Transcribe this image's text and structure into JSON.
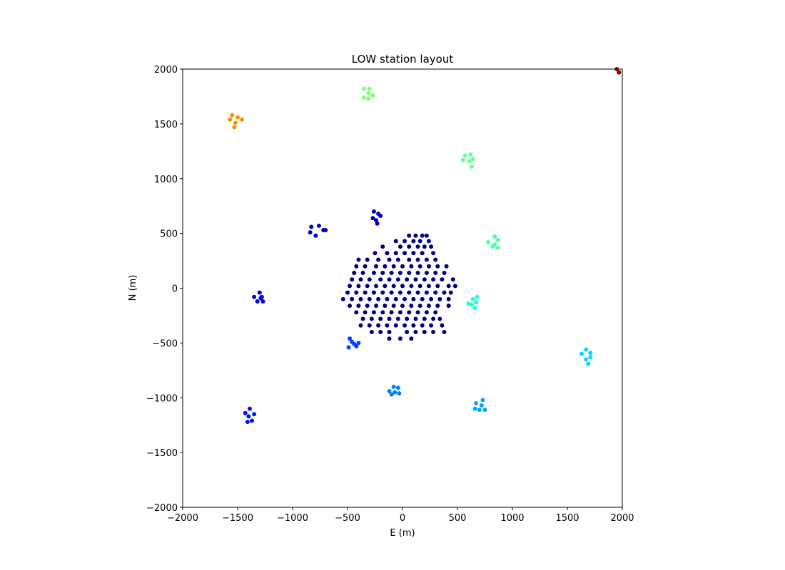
{
  "chart_data": {
    "type": "scatter",
    "title": "LOW station layout",
    "x_label": "E (m)",
    "y_label": "N (m)",
    "xlim": [
      -2000,
      2000
    ],
    "ylim": [
      -2000,
      2000
    ],
    "xticks": [
      {
        "value": -2000,
        "label": "−2000"
      },
      {
        "value": -1500,
        "label": "−1500"
      },
      {
        "value": -1000,
        "label": "−1000"
      },
      {
        "value": -500,
        "label": "−500"
      },
      0,
      500,
      1000,
      1500,
      2000
    ],
    "yticks": [
      {
        "value": -2000,
        "label": "−2000"
      },
      {
        "value": -1500,
        "label": "−1500"
      },
      {
        "value": -1000,
        "label": "−1000"
      },
      {
        "value": -500,
        "label": "−500"
      },
      0,
      500,
      1000,
      1500,
      2000
    ],
    "series": [
      {
        "color": "#00007f",
        "x": [
          60,
          120,
          180,
          220,
          -60,
          20,
          100,
          160,
          240,
          -180,
          -20,
          60,
          140,
          200,
          260,
          -250,
          -140,
          -60,
          20,
          100,
          180,
          280,
          -400,
          -320,
          -220,
          -120,
          -40,
          60,
          140,
          220,
          300,
          -420,
          -340,
          -240,
          -160,
          -80,
          0,
          80,
          160,
          240,
          320,
          400,
          -440,
          -360,
          -260,
          -180,
          -100,
          -20,
          60,
          140,
          220,
          300,
          380,
          -460,
          -380,
          -300,
          -200,
          -120,
          -40,
          40,
          120,
          200,
          280,
          360,
          460,
          -480,
          -400,
          -320,
          -240,
          -160,
          -80,
          0,
          80,
          160,
          240,
          320,
          420,
          480,
          -500,
          -420,
          -340,
          -260,
          -180,
          -100,
          -20,
          60,
          140,
          220,
          300,
          380,
          440,
          -540,
          -460,
          -380,
          -300,
          -220,
          -140,
          -60,
          20,
          100,
          180,
          260,
          340,
          420,
          -480,
          -400,
          -320,
          -240,
          -160,
          -80,
          0,
          80,
          160,
          240,
          320,
          420,
          -420,
          -340,
          -260,
          -180,
          -100,
          -20,
          60,
          140,
          220,
          300,
          -360,
          -280,
          -200,
          -120,
          -40,
          40,
          120,
          200,
          280,
          340,
          -380,
          -300,
          -220,
          -140,
          -60,
          20,
          100,
          180,
          260,
          360,
          -280,
          -200,
          -120,
          40,
          120,
          200,
          280,
          380,
          -120,
          -20,
          80
        ],
        "y": [
          480,
          480,
          480,
          480,
          430,
          430,
          430,
          430,
          430,
          380,
          380,
          380,
          380,
          380,
          380,
          320,
          320,
          320,
          320,
          320,
          320,
          320,
          260,
          260,
          260,
          260,
          260,
          260,
          260,
          260,
          260,
          200,
          200,
          200,
          200,
          200,
          200,
          200,
          200,
          200,
          200,
          200,
          140,
          140,
          140,
          140,
          140,
          140,
          140,
          140,
          140,
          140,
          140,
          80,
          80,
          80,
          80,
          80,
          80,
          80,
          80,
          80,
          80,
          80,
          80,
          20,
          20,
          20,
          20,
          20,
          20,
          20,
          20,
          20,
          20,
          20,
          20,
          20,
          -40,
          -40,
          -40,
          -40,
          -40,
          -40,
          -40,
          -40,
          -40,
          -40,
          -40,
          -40,
          -40,
          -100,
          -100,
          -100,
          -100,
          -100,
          -100,
          -100,
          -100,
          -100,
          -100,
          -100,
          -100,
          -100,
          -160,
          -160,
          -160,
          -160,
          -160,
          -160,
          -160,
          -160,
          -160,
          -160,
          -160,
          -160,
          -220,
          -220,
          -220,
          -220,
          -220,
          -220,
          -220,
          -220,
          -220,
          -220,
          -280,
          -280,
          -280,
          -280,
          -280,
          -280,
          -280,
          -280,
          -280,
          -280,
          -340,
          -340,
          -340,
          -340,
          -340,
          -340,
          -340,
          -340,
          -340,
          -340,
          -400,
          -400,
          -400,
          -400,
          -400,
          -400,
          -400,
          -400,
          -460,
          -460,
          -460
        ]
      },
      {
        "color": "#0000b2",
        "x": [
          -260,
          -220,
          -240,
          -200,
          -270,
          -230
        ],
        "y": [
          700,
          680,
          620,
          660,
          640,
          590
        ]
      },
      {
        "color": "#0000c8",
        "x": [
          -830,
          -760,
          -720,
          -840,
          -790,
          -700
        ],
        "y": [
          560,
          570,
          530,
          510,
          480,
          530
        ]
      },
      {
        "color": "#0000e8",
        "x": [
          -1350,
          -1300,
          -1280,
          -1320,
          -1270,
          -1290
        ],
        "y": [
          -80,
          -40,
          -80,
          -120,
          -120,
          -90
        ]
      },
      {
        "color": "#0010ff",
        "x": [
          -1390,
          -1430,
          -1350,
          -1400,
          -1410,
          -1370
        ],
        "y": [
          -1100,
          -1140,
          -1150,
          -1170,
          -1220,
          -1210
        ]
      },
      {
        "color": "#0040ff",
        "x": [
          -480,
          -440,
          -400,
          -490,
          -420,
          -460
        ],
        "y": [
          -460,
          -510,
          -500,
          -540,
          -530,
          -490
        ]
      },
      {
        "color": "#0080ff",
        "x": [
          -80,
          -40,
          -120,
          -100,
          -30,
          -70
        ],
        "y": [
          -900,
          -910,
          -940,
          -970,
          -960,
          -950
        ]
      },
      {
        "color": "#00a8ff",
        "x": [
          730,
          670,
          720,
          660,
          700,
          750
        ],
        "y": [
          -1020,
          -1050,
          -1070,
          -1100,
          -1110,
          -1110
        ]
      },
      {
        "color": "#00d8ff",
        "x": [
          1670,
          1630,
          1710,
          1670,
          1710,
          1690
        ],
        "y": [
          -560,
          -600,
          -590,
          -650,
          -630,
          -690
        ]
      },
      {
        "color": "#20ffd0",
        "x": [
          680,
          640,
          600,
          670,
          630,
          660
        ],
        "y": [
          -80,
          -100,
          -140,
          -130,
          -150,
          -180
        ]
      },
      {
        "color": "#4dffaa",
        "x": [
          840,
          870,
          780,
          820,
          870,
          840
        ],
        "y": [
          470,
          440,
          420,
          380,
          370,
          400
        ]
      },
      {
        "color": "#66ff90",
        "x": [
          570,
          620,
          550,
          610,
          640,
          630
        ],
        "y": [
          1210,
          1220,
          1170,
          1160,
          1180,
          1110
        ]
      },
      {
        "color": "#80ff77",
        "x": [
          -350,
          -300,
          -310,
          -270,
          -350,
          -310
        ],
        "y": [
          1820,
          1820,
          1780,
          1760,
          1740,
          1730
        ]
      },
      {
        "color": "#f59400",
        "x": [
          -1550,
          -1500,
          -1570,
          -1460,
          -1520,
          -1530
        ],
        "y": [
          1580,
          1560,
          1540,
          1540,
          1510,
          1470
        ]
      },
      {
        "color": "#7f0000",
        "x": [
          1950,
          1970
        ],
        "y": [
          2000,
          1970
        ]
      }
    ]
  }
}
